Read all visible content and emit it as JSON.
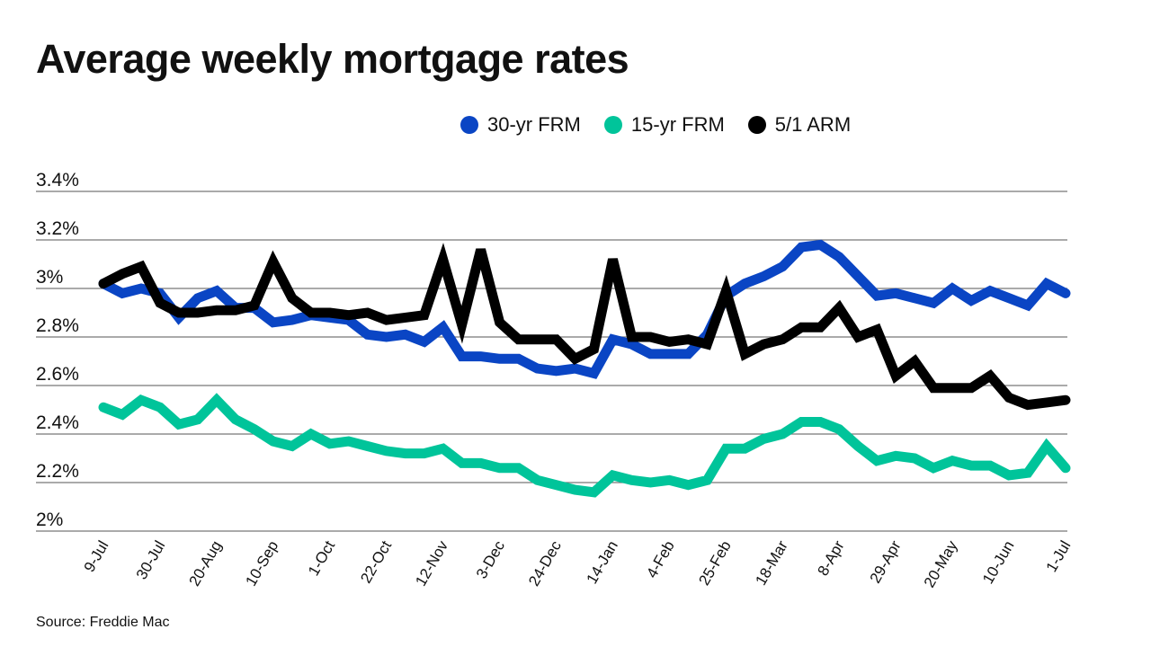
{
  "chart_data": {
    "type": "line",
    "title": "Average weekly mortgage rates",
    "source": "Source: Freddie Mac",
    "legend_position": "top",
    "grid": true,
    "ylim": [
      2.0,
      3.4
    ],
    "yticks": [
      2.0,
      2.2,
      2.4,
      2.6,
      2.8,
      3.0,
      3.2,
      3.4
    ],
    "ytick_labels": [
      "2%",
      "2.2%",
      "2.4%",
      "2.6%",
      "2.8%",
      "3%",
      "3.2%",
      "3.4%"
    ],
    "xtick_labels": [
      "9-Jul",
      "30-Jul",
      "20-Aug",
      "10-Sep",
      "1-Oct",
      "22-Oct",
      "12-Nov",
      "3-Dec",
      "24-Dec",
      "14-Jan",
      "4-Feb",
      "25-Feb",
      "18-Mar",
      "8-Apr",
      "29-Apr",
      "20-May",
      "10-Jun",
      "1-Jul"
    ],
    "xtick_every_weeks": 3,
    "series": [
      {
        "name": "30-yr FRM",
        "color": "#0a45c4",
        "values": [
          3.02,
          2.98,
          3.0,
          2.98,
          2.88,
          2.96,
          2.99,
          2.92,
          2.92,
          2.86,
          2.87,
          2.89,
          2.88,
          2.87,
          2.81,
          2.8,
          2.81,
          2.78,
          2.84,
          2.72,
          2.72,
          2.71,
          2.71,
          2.67,
          2.66,
          2.67,
          2.65,
          2.79,
          2.77,
          2.73,
          2.73,
          2.73,
          2.81,
          2.97,
          3.02,
          3.05,
          3.09,
          3.17,
          3.18,
          3.13,
          3.05,
          2.97,
          2.98,
          2.96,
          2.94,
          3.0,
          2.95,
          2.99,
          2.96,
          2.93,
          3.02,
          2.98
        ]
      },
      {
        "name": "15-yr FRM",
        "color": "#00c49a",
        "values": [
          2.51,
          2.48,
          2.54,
          2.51,
          2.44,
          2.46,
          2.54,
          2.46,
          2.42,
          2.37,
          2.35,
          2.4,
          2.36,
          2.37,
          2.35,
          2.33,
          2.32,
          2.32,
          2.34,
          2.28,
          2.28,
          2.26,
          2.26,
          2.21,
          2.19,
          2.17,
          2.16,
          2.23,
          2.21,
          2.2,
          2.21,
          2.19,
          2.21,
          2.34,
          2.34,
          2.38,
          2.4,
          2.45,
          2.45,
          2.42,
          2.35,
          2.29,
          2.31,
          2.3,
          2.26,
          2.29,
          2.27,
          2.27,
          2.23,
          2.24,
          2.35,
          2.26
        ]
      },
      {
        "name": "5/1 ARM",
        "color": "#000000",
        "values": [
          3.02,
          3.06,
          3.09,
          2.94,
          2.9,
          2.9,
          2.91,
          2.91,
          2.93,
          3.11,
          2.96,
          2.9,
          2.9,
          2.89,
          2.9,
          2.87,
          2.88,
          2.89,
          3.12,
          2.85,
          3.16,
          2.86,
          2.79,
          2.79,
          2.79,
          2.71,
          2.75,
          3.12,
          2.8,
          2.8,
          2.78,
          2.79,
          2.77,
          2.99,
          2.73,
          2.77,
          2.79,
          2.84,
          2.84,
          2.92,
          2.8,
          2.83,
          2.64,
          2.7,
          2.59,
          2.59,
          2.59,
          2.64,
          2.55,
          2.52,
          2.53,
          2.54
        ]
      }
    ]
  }
}
